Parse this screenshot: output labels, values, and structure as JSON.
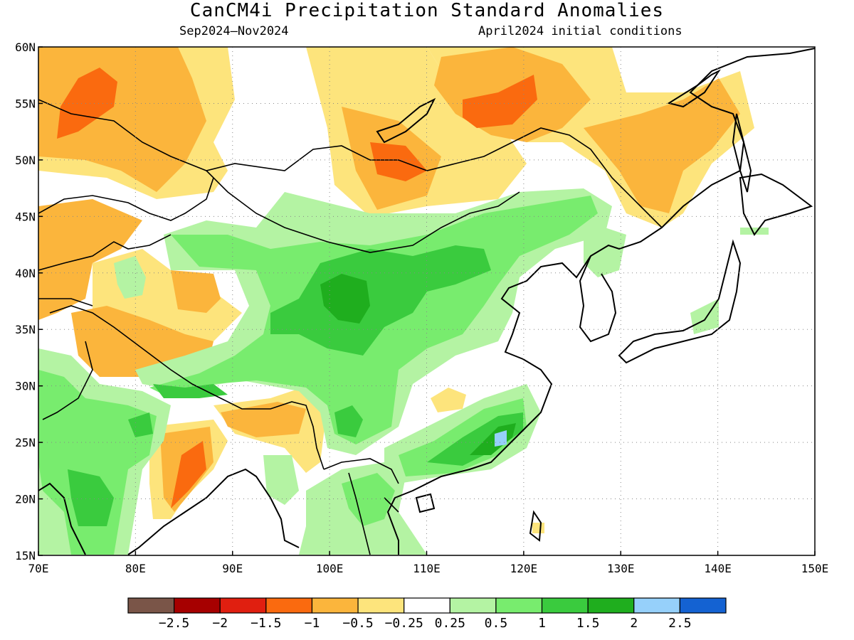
{
  "title": "CanCM4i Precipitation Standard Anomalies",
  "subtitle_left": "Sep2024–Nov2024",
  "subtitle_right": "April2024 initial conditions",
  "map": {
    "lon_range": [
      70,
      150
    ],
    "lat_range": [
      15,
      60
    ],
    "x_ticks": [
      {
        "value": 70,
        "label": "70E"
      },
      {
        "value": 80,
        "label": "80E"
      },
      {
        "value": 90,
        "label": "90E"
      },
      {
        "value": 100,
        "label": "100E"
      },
      {
        "value": 110,
        "label": "110E"
      },
      {
        "value": 120,
        "label": "120E"
      },
      {
        "value": 130,
        "label": "130E"
      },
      {
        "value": 140,
        "label": "140E"
      },
      {
        "value": 150,
        "label": "150E"
      }
    ],
    "y_ticks": [
      {
        "value": 60,
        "label": "60N"
      },
      {
        "value": 55,
        "label": "55N"
      },
      {
        "value": 50,
        "label": "50N"
      },
      {
        "value": 45,
        "label": "45N"
      },
      {
        "value": 40,
        "label": "40N"
      },
      {
        "value": 35,
        "label": "35N"
      },
      {
        "value": 30,
        "label": "30N"
      },
      {
        "value": 25,
        "label": "25N"
      },
      {
        "value": 20,
        "label": "20N"
      },
      {
        "value": 15,
        "label": "15N"
      }
    ]
  },
  "colorbar": {
    "colors": [
      "#7a5548",
      "#a60000",
      "#e01f10",
      "#fa6a0f",
      "#fbb53c",
      "#fde47c",
      "#ffffff",
      "#b4f3a3",
      "#78ec6e",
      "#3acb3e",
      "#1fae1e",
      "#96d0fa",
      "#1462d2"
    ],
    "labels": [
      "−2.5",
      "−2",
      "−1.5",
      "−1",
      "−0.5",
      "−0.25",
      "0.25",
      "0.5",
      "1",
      "1.5",
      "2",
      "2.5"
    ]
  }
}
